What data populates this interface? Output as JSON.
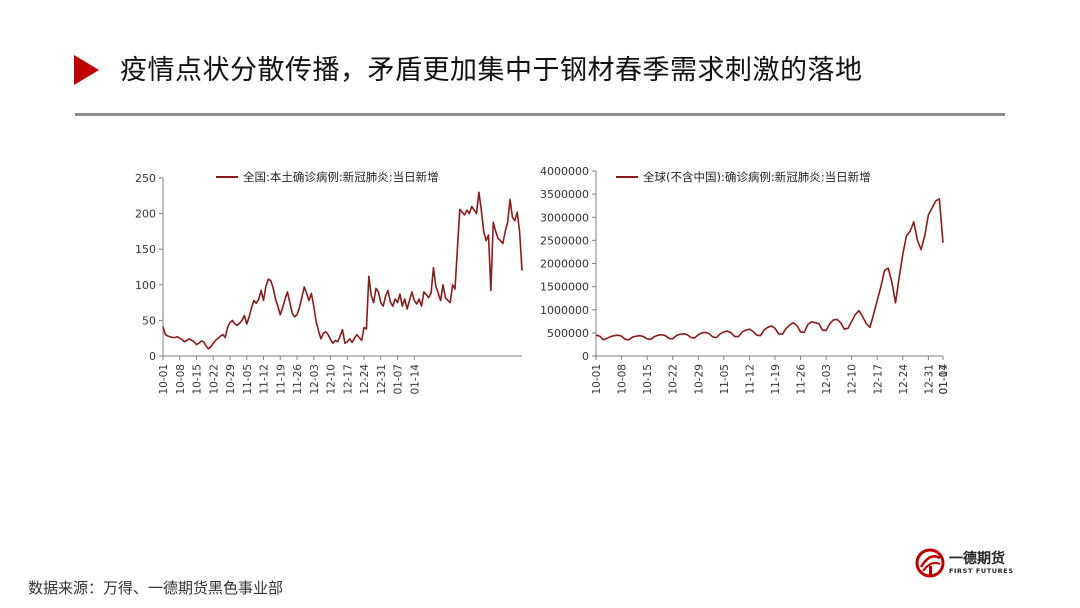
{
  "slide": {
    "title": "疫情点状分散传播，矛盾更加集中于钢材春季需求刺激的落地",
    "source": "数据来源：万得、一德期货黑色事业部",
    "accent_color": "#c00000",
    "logo": {
      "name_cn": "一德期货",
      "name_en": "FIRST FUTURES",
      "icon": "first-futures-logo-icon"
    }
  },
  "chart_data": [
    {
      "type": "line",
      "legend_position": "top",
      "series": [
        {
          "name": "全国:本土确诊病例:新冠肺炎:当日新增",
          "color": "#8b1a1a",
          "values": [
            41,
            30,
            28,
            27,
            26,
            26,
            27,
            25,
            23,
            20,
            22,
            24,
            22,
            20,
            16,
            18,
            21,
            20,
            14,
            10,
            13,
            18,
            22,
            25,
            28,
            30,
            26,
            40,
            47,
            50,
            45,
            43,
            46,
            50,
            57,
            45,
            55,
            68,
            78,
            74,
            80,
            92,
            78,
            98,
            108,
            106,
            96,
            80,
            70,
            58,
            68,
            80,
            90,
            75,
            60,
            55,
            58,
            68,
            82,
            97,
            88,
            78,
            88,
            70,
            48,
            35,
            24,
            32,
            34,
            30,
            23,
            18,
            22,
            20,
            28,
            37,
            18,
            20,
            24,
            19,
            25,
            30,
            26,
            22,
            40,
            38,
            112,
            85,
            75,
            95,
            90,
            75,
            70,
            84,
            92,
            76,
            70,
            80,
            75,
            87,
            70,
            80,
            66,
            78,
            90,
            78,
            73,
            80,
            70,
            90,
            86,
            82,
            88,
            124,
            98,
            88,
            78,
            100,
            82,
            78,
            75,
            100,
            94,
            150,
            206,
            202,
            198,
            205,
            200,
            210,
            205,
            200,
            230,
            205,
            175,
            162,
            170,
            92,
            188,
            175,
            165,
            162,
            158,
            175,
            188,
            220,
            195,
            190,
            202,
            175,
            120
          ]
        }
      ],
      "x_tick_labels": [
        "10-01",
        "10-08",
        "10-15",
        "10-22",
        "10-29",
        "11-05",
        "11-12",
        "11-19",
        "11-26",
        "12-03",
        "12-10",
        "12-17",
        "12-24",
        "12-31",
        "01-07",
        "01-14"
      ],
      "y_tick_labels": [
        "0",
        "50",
        "100",
        "150",
        "200",
        "250"
      ],
      "ylim": [
        0,
        250
      ]
    },
    {
      "type": "line",
      "legend_position": "top",
      "series": [
        {
          "name": "全球(不含中国):确诊病例:新冠肺炎:当日新增",
          "color": "#8b1a1a",
          "values": [
            450000,
            430000,
            350000,
            380000,
            420000,
            440000,
            450000,
            430000,
            360000,
            350000,
            410000,
            430000,
            440000,
            420000,
            370000,
            360000,
            420000,
            450000,
            460000,
            440000,
            380000,
            370000,
            440000,
            470000,
            480000,
            460000,
            400000,
            390000,
            460000,
            500000,
            510000,
            480000,
            410000,
            400000,
            480000,
            520000,
            540000,
            500000,
            420000,
            420000,
            520000,
            560000,
            580000,
            530000,
            450000,
            440000,
            560000,
            620000,
            650000,
            600000,
            480000,
            470000,
            590000,
            670000,
            720000,
            660000,
            520000,
            510000,
            680000,
            740000,
            720000,
            700000,
            560000,
            550000,
            700000,
            780000,
            790000,
            720000,
            580000,
            600000,
            750000,
            900000,
            980000,
            850000,
            700000,
            620000,
            900000,
            1200000,
            1500000,
            1850000,
            1900000,
            1600000,
            1150000,
            1700000,
            2200000,
            2600000,
            2700000,
            2900000,
            2500000,
            2300000,
            2600000,
            3050000,
            3200000,
            3350000,
            3400000,
            2450000
          ]
        }
      ],
      "x_tick_labels": [
        "10-01",
        "10-08",
        "10-15",
        "10-22",
        "10-29",
        "11-05",
        "11-12",
        "11-19",
        "11-26",
        "12-03",
        "12-10",
        "12-17",
        "12-24",
        "12-31",
        "01-07",
        "01-14"
      ],
      "y_tick_labels": [
        "0",
        "500000",
        "1000000",
        "1500000",
        "2000000",
        "2500000",
        "3000000",
        "3500000",
        "4000000"
      ],
      "ylim": [
        0,
        4000000
      ]
    }
  ]
}
